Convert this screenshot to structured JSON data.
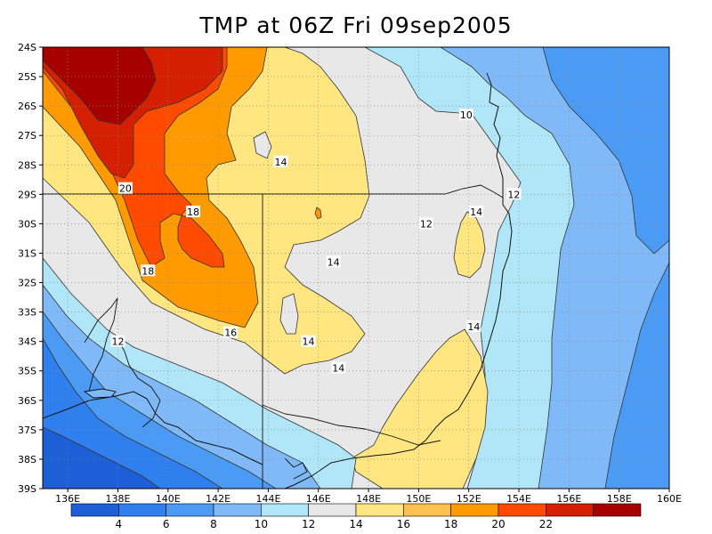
{
  "title": "TMP at 06Z Fri 09sep2005",
  "map": {
    "lon_range": [
      135,
      160
    ],
    "lat_range": [
      -39,
      -24
    ],
    "lon_ticks": [
      "136E",
      "138E",
      "140E",
      "142E",
      "144E",
      "146E",
      "148E",
      "150E",
      "152E",
      "154E",
      "156E",
      "158E",
      "160E"
    ],
    "lat_ticks": [
      "24S",
      "25S",
      "26S",
      "27S",
      "28S",
      "29S",
      "30S",
      "31S",
      "32S",
      "33S",
      "34S",
      "35S",
      "36S",
      "37S",
      "38S",
      "39S"
    ],
    "grid": true
  },
  "contour_labels": [
    {
      "text": "10",
      "lon": 151.9,
      "lat": -26.3
    },
    {
      "text": "12",
      "lon": 153.8,
      "lat": -29.0
    },
    {
      "text": "12",
      "lon": 150.3,
      "lat": -30.0
    },
    {
      "text": "14",
      "lon": 152.3,
      "lat": -29.6
    },
    {
      "text": "14",
      "lon": 144.5,
      "lat": -27.9
    },
    {
      "text": "14",
      "lon": 146.6,
      "lat": -31.3
    },
    {
      "text": "14",
      "lon": 145.6,
      "lat": -34.0
    },
    {
      "text": "14",
      "lon": 146.8,
      "lat": -34.9
    },
    {
      "text": "14",
      "lon": 152.2,
      "lat": -33.5
    },
    {
      "text": "12",
      "lon": 138.0,
      "lat": -34.0
    },
    {
      "text": "16",
      "lon": 142.5,
      "lat": -33.7
    },
    {
      "text": "18",
      "lon": 141.0,
      "lat": -29.6
    },
    {
      "text": "18",
      "lon": 139.2,
      "lat": -31.6
    },
    {
      "text": "20",
      "lon": 138.3,
      "lat": -28.8
    }
  ],
  "colorbar": {
    "colors": [
      "#1c5fd6",
      "#2f80ee",
      "#4b9bf5",
      "#80b9f7",
      "#b0e6f7",
      "#e8e8e8",
      "#ffe680",
      "#ffc14d",
      "#ff9a00",
      "#ff4a00",
      "#d41f00",
      "#a60000"
    ],
    "labels": [
      "4",
      "6",
      "8",
      "10",
      "12",
      "14",
      "16",
      "18",
      "20",
      "22"
    ]
  },
  "legend_colors": {
    "band_4_6": "#2f80ee",
    "band_8_10": "#80b9f7",
    "band_10_12": "#b0e6f7",
    "band_12_14": "#e8e8e8",
    "band_14_16": "#ffe680",
    "band_16_18": "#ff9a00",
    "band_18_20": "#ff4a00",
    "band_20_22": "#d41f00",
    "band_22_24": "#a60000"
  }
}
